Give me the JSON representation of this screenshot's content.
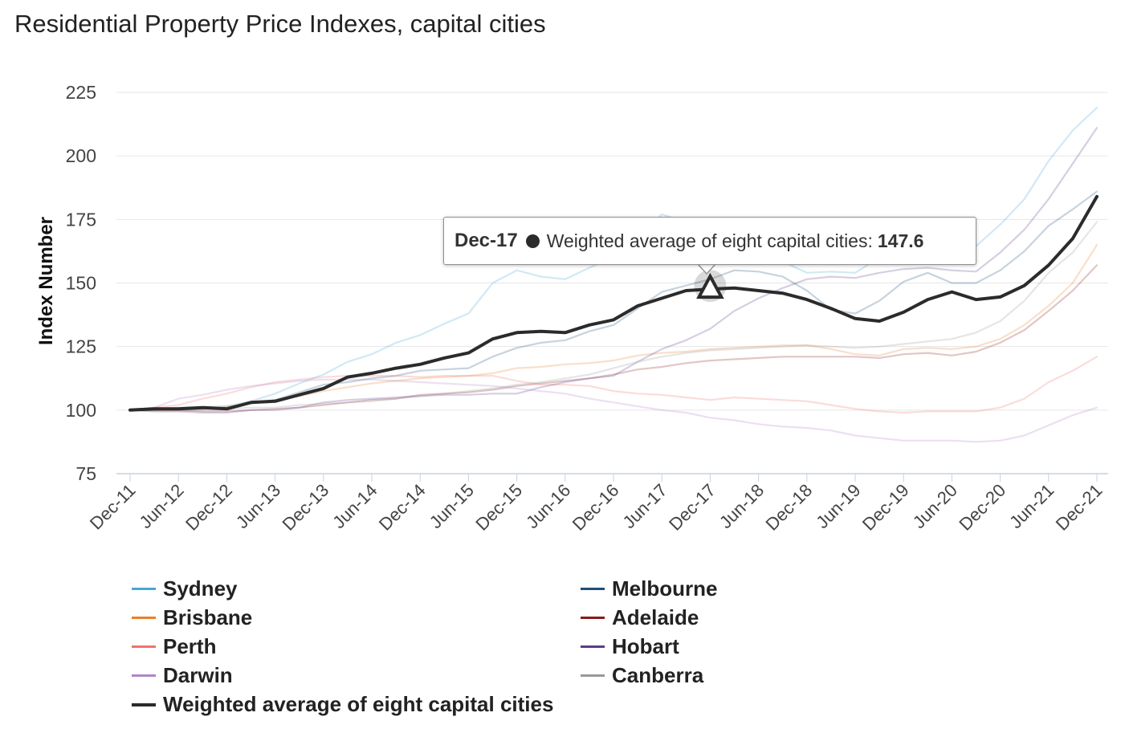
{
  "title": "Residential Property Price Indexes, capital cities",
  "tooltip": {
    "date": "Dec-17",
    "series": "Weighted average of eight capital cities:",
    "value": "147.6"
  },
  "chart_data": {
    "type": "line",
    "title": "Residential Property Price Indexes, capital cities",
    "xlabel": "",
    "ylabel": "Index Number",
    "ylim": [
      75,
      225
    ],
    "yticks": [
      75,
      100,
      125,
      150,
      175,
      200,
      225
    ],
    "grid": true,
    "legend_position": "bottom",
    "x_tick_labels": [
      "Dec-11",
      "Jun-12",
      "Dec-12",
      "Jun-13",
      "Dec-13",
      "Jun-14",
      "Dec-14",
      "Jun-15",
      "Dec-15",
      "Jun-16",
      "Dec-16",
      "Jun-17",
      "Dec-17",
      "Jun-18",
      "Dec-18",
      "Jun-19",
      "Dec-19",
      "Jun-20",
      "Dec-20",
      "Jun-21",
      "Dec-21"
    ],
    "x": [
      "Dec-11",
      "Mar-12",
      "Jun-12",
      "Sep-12",
      "Dec-12",
      "Mar-13",
      "Jun-13",
      "Sep-13",
      "Dec-13",
      "Mar-14",
      "Jun-14",
      "Sep-14",
      "Dec-14",
      "Mar-15",
      "Jun-15",
      "Sep-15",
      "Dec-15",
      "Mar-16",
      "Jun-16",
      "Sep-16",
      "Dec-16",
      "Mar-17",
      "Jun-17",
      "Sep-17",
      "Dec-17",
      "Mar-18",
      "Jun-18",
      "Sep-18",
      "Dec-18",
      "Mar-19",
      "Jun-19",
      "Sep-19",
      "Dec-19",
      "Mar-20",
      "Jun-20",
      "Sep-20",
      "Dec-20",
      "Mar-21",
      "Jun-21",
      "Sep-21",
      "Dec-21"
    ],
    "highlight": {
      "series": "Weighted average of eight capital cities",
      "x": "Dec-17",
      "value": 147.6
    },
    "series": [
      {
        "name": "Sydney",
        "color": "#45a6d9",
        "faded": true,
        "values": [
          100,
          100.5,
          101,
          101.3,
          101.5,
          103.5,
          106.5,
          110.5,
          114,
          119,
          122,
          126.5,
          129.5,
          134,
          138,
          150,
          155,
          152.5,
          151.5,
          156,
          160,
          167,
          177,
          174,
          172,
          168.5,
          163,
          158.5,
          154,
          154.5,
          154,
          160,
          166,
          168,
          165,
          164.5,
          173,
          183,
          198,
          210,
          219
        ]
      },
      {
        "name": "Melbourne",
        "color": "#1f4e79",
        "faded": true,
        "values": [
          100,
          100,
          100.5,
          100.5,
          101,
          103,
          104,
          107,
          110,
          111,
          112.5,
          113.5,
          115.5,
          116,
          116.5,
          121,
          124.5,
          126.5,
          127.5,
          131,
          133.5,
          140,
          146.5,
          149,
          151.5,
          155,
          154.5,
          152.5,
          147,
          139.5,
          138,
          143,
          150.5,
          154,
          150,
          150,
          155,
          162.5,
          172.5,
          179,
          186
        ]
      },
      {
        "name": "Brisbane",
        "color": "#e8802b",
        "faded": true,
        "values": [
          100,
          100,
          100,
          100.5,
          101.5,
          102.5,
          104,
          105.5,
          107.5,
          109,
          110.5,
          111.5,
          112.5,
          113,
          113.5,
          114.5,
          116.5,
          117,
          118,
          118.5,
          119.5,
          121.5,
          122.5,
          123,
          124,
          124.5,
          125,
          125.5,
          125.5,
          124,
          122,
          121.5,
          124,
          124.5,
          124,
          125,
          128,
          133.5,
          141,
          150,
          165
        ]
      },
      {
        "name": "Adelaide",
        "color": "#8b1a1a",
        "faded": true,
        "values": [
          100,
          100,
          100,
          99.5,
          99.5,
          100,
          100.5,
          101,
          102,
          103,
          104,
          104.5,
          106,
          106.5,
          107,
          108,
          109.5,
          110.5,
          111.5,
          112.5,
          114,
          116,
          117,
          118.5,
          119.5,
          120,
          120.5,
          121,
          121,
          121,
          121,
          120.5,
          122,
          122.5,
          121.5,
          123,
          126.5,
          131.5,
          139,
          147,
          157
        ]
      },
      {
        "name": "Perth",
        "color": "#f0736e",
        "faded": true,
        "values": [
          100,
          101,
          102,
          104.5,
          106.5,
          109,
          111,
          112,
          113,
          113.5,
          113.5,
          113.5,
          113,
          113.5,
          113.5,
          113.5,
          111.5,
          110,
          110,
          109.5,
          107.5,
          106.5,
          106,
          105,
          104,
          105,
          104.5,
          104,
          103.5,
          102,
          100.5,
          99.5,
          99,
          99.5,
          99.5,
          99.5,
          101,
          104.5,
          111,
          115.5,
          121
        ]
      },
      {
        "name": "Hobart",
        "color": "#5b3c8c",
        "faded": true,
        "values": [
          100,
          99.5,
          99.5,
          99,
          99,
          100,
          100,
          101,
          103,
          104,
          104.5,
          105,
          105.5,
          106,
          106,
          106.5,
          106.5,
          109,
          111,
          112.5,
          113.5,
          119,
          124,
          127.5,
          132,
          139,
          144,
          148,
          151.5,
          152.5,
          152,
          154,
          155.5,
          156,
          155,
          154.5,
          162,
          171,
          183,
          197,
          211
        ]
      },
      {
        "name": "Darwin",
        "color": "#b085c6",
        "faded": true,
        "values": [
          100,
          101,
          104.5,
          106,
          108,
          109.5,
          110.5,
          111.5,
          112,
          112,
          112,
          111.5,
          111,
          110.5,
          110,
          109.5,
          108.5,
          107.5,
          106.5,
          104.5,
          103,
          101.5,
          100,
          99,
          97,
          96,
          94.5,
          93.5,
          93,
          92,
          90,
          89,
          88,
          88,
          88,
          87.5,
          88,
          90,
          94,
          98,
          101
        ]
      },
      {
        "name": "Canberra",
        "color": "#999999",
        "faded": true,
        "values": [
          100,
          99.5,
          99.5,
          100,
          100.5,
          101,
          101,
          102,
          102.5,
          103,
          103.5,
          104.5,
          105.5,
          106.5,
          107.5,
          108.5,
          110,
          111,
          112.5,
          114,
          116.5,
          119,
          121,
          122.5,
          123.5,
          124,
          124.5,
          125,
          125.5,
          125,
          124.5,
          125,
          126,
          127,
          128,
          130.5,
          135,
          143,
          154,
          162,
          174
        ]
      },
      {
        "name": "Weighted average of eight capital cities",
        "color": "#2b2b2b",
        "faded": false,
        "values": [
          100,
          100.5,
          100.5,
          101,
          100.5,
          103,
          103.5,
          106,
          108.5,
          113,
          114.5,
          116.5,
          118,
          120.5,
          122.5,
          128,
          130.5,
          131,
          130.5,
          133.5,
          135.5,
          141,
          144,
          147,
          147.6,
          148,
          147,
          146,
          143.5,
          140,
          136,
          135,
          138.5,
          143.5,
          146.5,
          143.5,
          144.5,
          149,
          157,
          167.5,
          184
        ]
      }
    ]
  },
  "legend": {
    "left": [
      {
        "label": "Sydney",
        "color": "#45a6d9"
      },
      {
        "label": "Brisbane",
        "color": "#e8802b"
      },
      {
        "label": "Perth",
        "color": "#f0736e"
      },
      {
        "label": "Darwin",
        "color": "#b085c6"
      },
      {
        "label": "Weighted average of eight capital cities",
        "color": "#2b2b2b"
      }
    ],
    "right": [
      {
        "label": "Melbourne",
        "color": "#1f4e79"
      },
      {
        "label": "Adelaide",
        "color": "#8b1a1a"
      },
      {
        "label": "Hobart",
        "color": "#5b3c8c"
      },
      {
        "label": "Canberra",
        "color": "#999999"
      }
    ]
  }
}
